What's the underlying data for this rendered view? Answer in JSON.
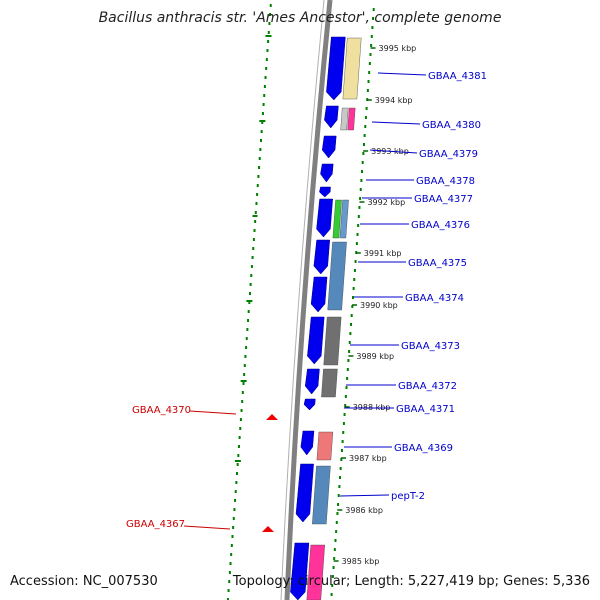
{
  "title": "Bacillus anthracis str. 'Ames Ancestor', complete genome",
  "accession": "Accession: NC_007530",
  "topology": "Topology: circular; Length: 5,227,419 bp; Genes: 5,336",
  "colors": {
    "backbone": "#808080",
    "cds": "#0000ee",
    "label_right": "#0000cc",
    "label_left": "#cc0000",
    "gc_dots": "#008000"
  },
  "kbp_ticks": [
    "3995 kbp",
    "3994 kbp",
    "3993 kbp",
    "3992 kbp",
    "3991 kbp",
    "3990 kbp",
    "3989 kbp",
    "3988 kbp",
    "3987 kbp",
    "3986 kbp",
    "3985 kbp"
  ],
  "right_genes": [
    "GBAA_4381",
    "GBAA_4380",
    "GBAA_4379",
    "GBAA_4378",
    "GBAA_4377",
    "GBAA_4376",
    "GBAA_4375",
    "GBAA_4374",
    "GBAA_4373",
    "GBAA_4372",
    "GBAA_4371",
    "GBAA_4369",
    "pepT-2"
  ],
  "left_genes": [
    "GBAA_4370",
    "GBAA_4367"
  ]
}
